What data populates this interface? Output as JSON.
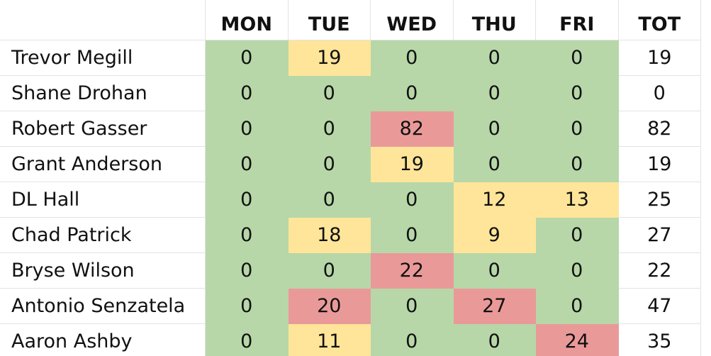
{
  "table": {
    "header": [
      "MON",
      "TUE",
      "WED",
      "THU",
      "FRI",
      "TOT"
    ],
    "rows": [
      {
        "name": "Trevor Megill",
        "values": [
          0,
          19,
          0,
          0,
          0,
          19
        ],
        "colors": [
          "#b7d7a8",
          "#ffe599",
          "#b7d7a8",
          "#b7d7a8",
          "#b7d7a8",
          "#ffffff"
        ]
      },
      {
        "name": "Shane Drohan",
        "values": [
          0,
          0,
          0,
          0,
          0,
          0
        ],
        "colors": [
          "#b7d7a8",
          "#b7d7a8",
          "#b7d7a8",
          "#b7d7a8",
          "#b7d7a8",
          "#ffffff"
        ]
      },
      {
        "name": "Robert Gasser",
        "values": [
          0,
          0,
          82,
          0,
          0,
          82
        ],
        "colors": [
          "#b7d7a8",
          "#b7d7a8",
          "#ea9999",
          "#b7d7a8",
          "#b7d7a8",
          "#ffffff"
        ]
      },
      {
        "name": "Grant Anderson",
        "values": [
          0,
          0,
          19,
          0,
          0,
          19
        ],
        "colors": [
          "#b7d7a8",
          "#b7d7a8",
          "#ffe599",
          "#b7d7a8",
          "#b7d7a8",
          "#ffffff"
        ]
      },
      {
        "name": "DL Hall",
        "values": [
          0,
          0,
          0,
          12,
          13,
          25
        ],
        "colors": [
          "#b7d7a8",
          "#b7d7a8",
          "#b7d7a8",
          "#ffe599",
          "#ffe599",
          "#ffffff"
        ]
      },
      {
        "name": "Chad Patrick",
        "values": [
          0,
          18,
          0,
          9,
          0,
          27
        ],
        "colors": [
          "#b7d7a8",
          "#ffe599",
          "#b7d7a8",
          "#ffe599",
          "#b7d7a8",
          "#ffffff"
        ]
      },
      {
        "name": "Bryse Wilson",
        "values": [
          0,
          0,
          22,
          0,
          0,
          22
        ],
        "colors": [
          "#b7d7a8",
          "#b7d7a8",
          "#ea9999",
          "#b7d7a8",
          "#b7d7a8",
          "#ffffff"
        ]
      },
      {
        "name": "Antonio Senzatela",
        "values": [
          0,
          20,
          0,
          27,
          0,
          47
        ],
        "colors": [
          "#b7d7a8",
          "#ea9999",
          "#b7d7a8",
          "#ea9999",
          "#b7d7a8",
          "#ffffff"
        ]
      },
      {
        "name": "Aaron Ashby",
        "values": [
          0,
          11,
          0,
          0,
          24,
          35
        ],
        "colors": [
          "#b7d7a8",
          "#ffe599",
          "#b7d7a8",
          "#b7d7a8",
          "#ea9999",
          "#ffffff"
        ]
      }
    ]
  }
}
